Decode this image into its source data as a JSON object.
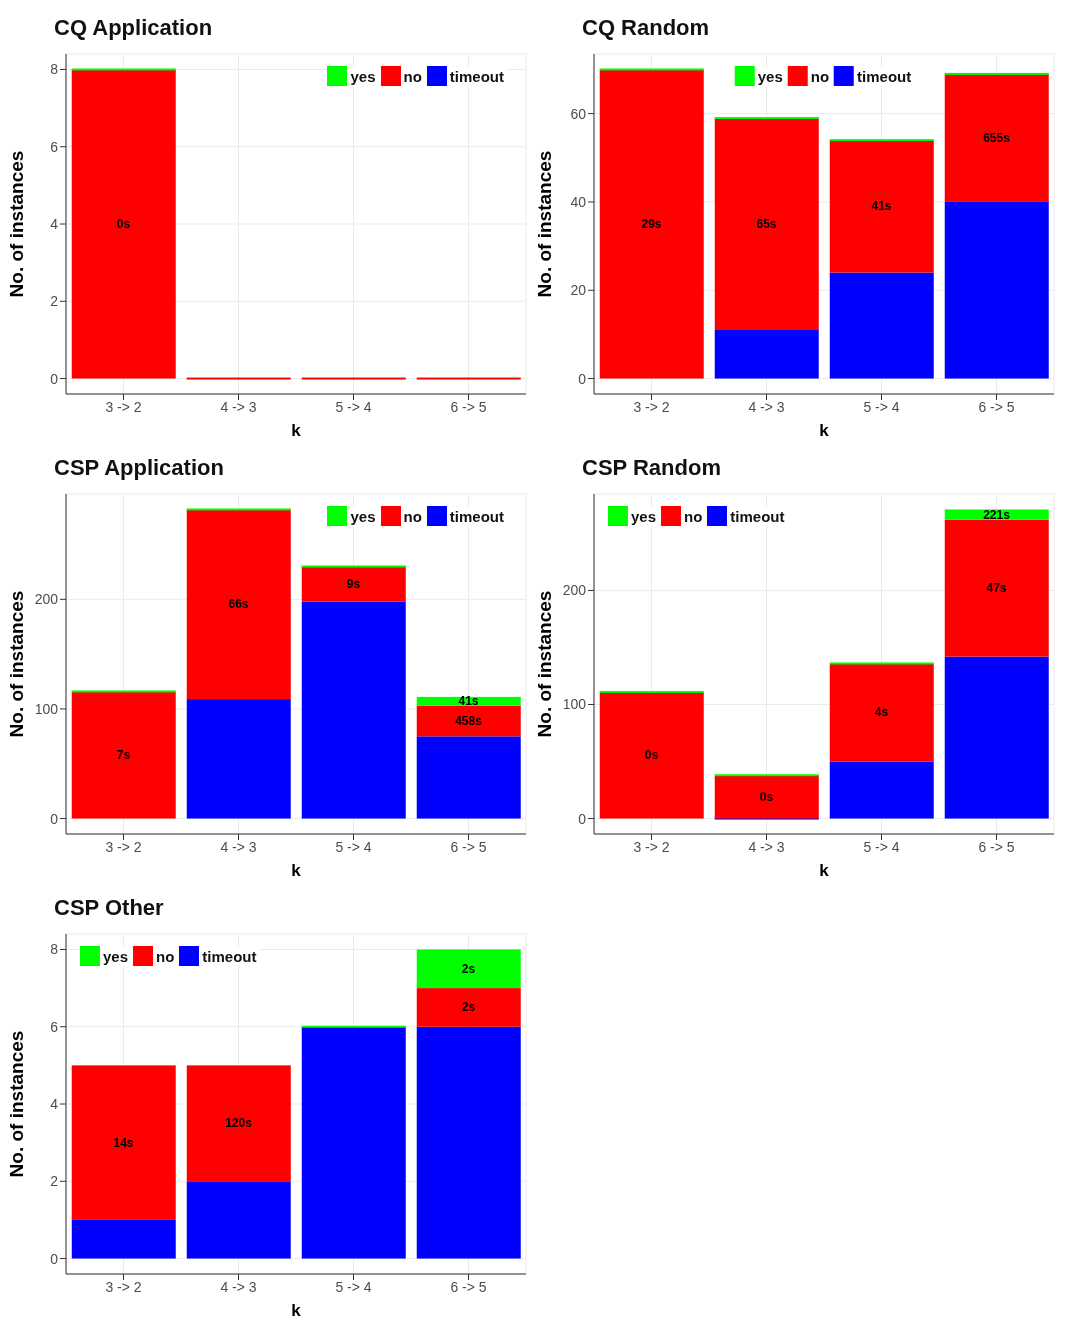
{
  "chart_data": [
    {
      "type": "bar",
      "stacked": true,
      "title": "CQ Application",
      "xlabel": "k",
      "ylabel": "No. of instances",
      "categories": [
        "3 -> 2",
        "4 -> 3",
        "5 -> 4",
        "6 -> 5"
      ],
      "ylim": [
        -0.4,
        8.4
      ],
      "yticks": [
        0,
        2,
        4,
        6,
        8
      ],
      "grid": true,
      "legend": "top right",
      "series": [
        {
          "name": "timeout",
          "color": "#0000ff",
          "values": [
            null,
            null,
            null,
            null
          ]
        },
        {
          "name": "no",
          "color": "#ff0000",
          "values": [
            8,
            0,
            0,
            0
          ]
        },
        {
          "name": "yes",
          "color": "#00ff00",
          "values": [
            0,
            null,
            null,
            null
          ]
        }
      ],
      "annotations": [
        "0s"
      ]
    },
    {
      "type": "bar",
      "stacked": true,
      "title": "CQ Random",
      "xlabel": "k",
      "ylabel": "No. of instances",
      "categories": [
        "3 -> 2",
        "4 -> 3",
        "5 -> 4",
        "6 -> 5"
      ],
      "ylim": [
        -3.5,
        73.5
      ],
      "yticks": [
        0,
        20,
        40,
        60
      ],
      "grid": true,
      "legend": "top",
      "series": [
        {
          "name": "timeout",
          "color": "#0000ff",
          "values": [
            null,
            11,
            24,
            40
          ]
        },
        {
          "name": "no",
          "color": "#ff0000",
          "values": [
            70,
            48,
            30,
            29
          ]
        },
        {
          "name": "yes",
          "color": "#00ff00",
          "values": [
            0,
            0,
            0,
            0
          ]
        }
      ],
      "annotations": [
        "29s",
        "65s",
        "41s",
        "655s"
      ]
    },
    {
      "type": "bar",
      "stacked": true,
      "title": "CSP Application",
      "xlabel": "k",
      "ylabel": "No. of instances",
      "categories": [
        "3 -> 2",
        "4 -> 3",
        "5 -> 4",
        "6 -> 5"
      ],
      "ylim": [
        -14.1,
        296.1
      ],
      "yticks": [
        0,
        100,
        200
      ],
      "grid": true,
      "legend": "top right",
      "series": [
        {
          "name": "timeout",
          "color": "#0000ff",
          "values": [
            null,
            109,
            198,
            75
          ]
        },
        {
          "name": "no",
          "color": "#ff0000",
          "values": [
            116,
            173,
            32,
            28
          ]
        },
        {
          "name": "yes",
          "color": "#00ff00",
          "values": [
            0,
            0,
            0,
            8
          ]
        }
      ],
      "annotations": [
        "7s",
        "66s",
        "9s",
        "458s",
        "41s"
      ]
    },
    {
      "type": "bar",
      "stacked": true,
      "title": "CSP Random",
      "xlabel": "k",
      "ylabel": "No. of instances",
      "categories": [
        "3 -> 2",
        "4 -> 3",
        "5 -> 4",
        "6 -> 5"
      ],
      "ylim": [
        -13.55,
        284.55
      ],
      "yticks": [
        0,
        100,
        200
      ],
      "grid": true,
      "legend": "top left",
      "series": [
        {
          "name": "timeout",
          "color": "#0000ff",
          "values": [
            null,
            0,
            50,
            142
          ]
        },
        {
          "name": "no",
          "color": "#ff0000",
          "values": [
            111,
            38,
            86,
            120
          ]
        },
        {
          "name": "yes",
          "color": "#00ff00",
          "values": [
            0,
            0,
            0,
            9
          ]
        }
      ],
      "annotations": [
        "0s",
        "0s",
        "4s",
        "47s",
        "221s"
      ]
    },
    {
      "type": "bar",
      "stacked": true,
      "title": "CSP Other",
      "xlabel": "k",
      "ylabel": "No. of instances",
      "categories": [
        "3 -> 2",
        "4 -> 3",
        "5 -> 4",
        "6 -> 5"
      ],
      "ylim": [
        -0.4,
        8.4
      ],
      "yticks": [
        0,
        2,
        4,
        6,
        8
      ],
      "grid": true,
      "legend": "top left",
      "series": [
        {
          "name": "timeout",
          "color": "#0000ff",
          "values": [
            1,
            2,
            6,
            6
          ]
        },
        {
          "name": "no",
          "color": "#ff0000",
          "values": [
            4,
            3,
            null,
            1
          ]
        },
        {
          "name": "yes",
          "color": "#00ff00",
          "values": [
            null,
            null,
            0,
            1
          ]
        }
      ],
      "annotations": [
        "14s",
        "120s",
        "2s",
        "2s"
      ]
    }
  ]
}
